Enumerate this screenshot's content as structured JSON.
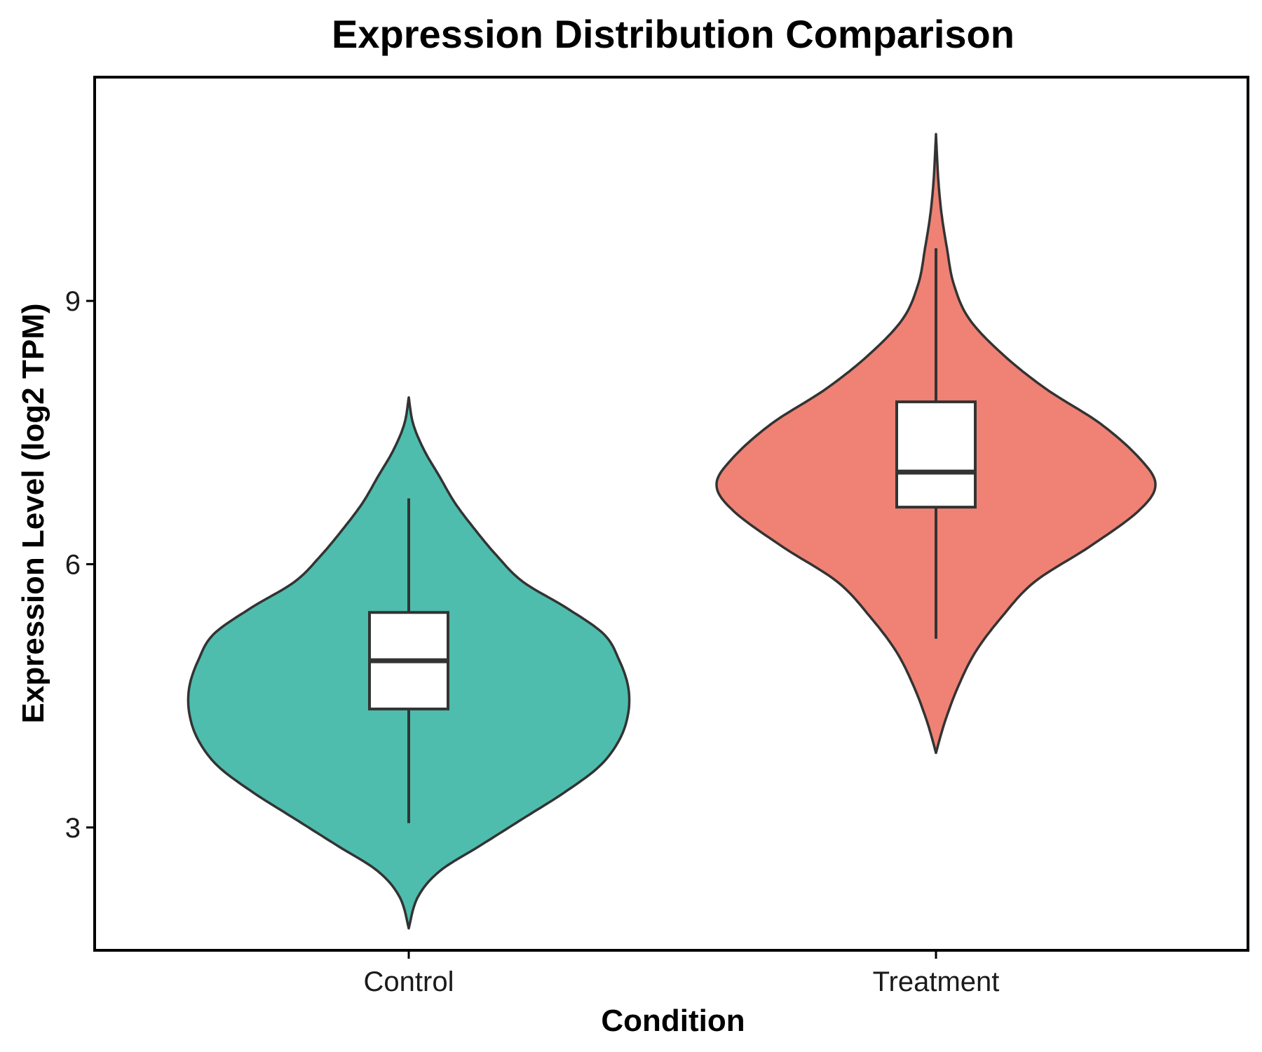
{
  "chart_data": {
    "type": "violin",
    "title": "Expression Distribution Comparison",
    "xlabel": "Condition",
    "ylabel": "Expression Level (log2 TPM)",
    "categories": [
      "Control",
      "Treatment"
    ],
    "ylim": [
      1.6,
      11.55
    ],
    "yticks": [
      3,
      6,
      9
    ],
    "grid": false,
    "legend": "none",
    "colors": {
      "Control": "#4EBDAD",
      "Treatment": "#EF8274",
      "outline": "#333333"
    },
    "series": [
      {
        "category": "Control",
        "box": {
          "whisker_low": 3.05,
          "q1": 4.35,
          "median": 4.9,
          "q3": 5.45,
          "whisker_high": 6.75
        },
        "range": [
          1.85,
          7.9
        ],
        "density": [
          [
            1.85,
            0.0
          ],
          [
            2.2,
            0.04
          ],
          [
            2.5,
            0.14
          ],
          [
            2.8,
            0.33
          ],
          [
            3.1,
            0.52
          ],
          [
            3.4,
            0.71
          ],
          [
            3.7,
            0.87
          ],
          [
            4.0,
            0.96
          ],
          [
            4.3,
            1.0
          ],
          [
            4.6,
            1.0
          ],
          [
            4.9,
            0.96
          ],
          [
            5.2,
            0.89
          ],
          [
            5.5,
            0.72
          ],
          [
            5.8,
            0.52
          ],
          [
            6.1,
            0.4
          ],
          [
            6.4,
            0.3
          ],
          [
            6.7,
            0.21
          ],
          [
            7.0,
            0.14
          ],
          [
            7.3,
            0.07
          ],
          [
            7.6,
            0.02
          ],
          [
            7.9,
            0.0
          ]
        ]
      },
      {
        "category": "Treatment",
        "box": {
          "whisker_low": 5.15,
          "q1": 6.65,
          "median": 7.05,
          "q3": 7.85,
          "whisker_high": 9.6
        },
        "range": [
          3.85,
          10.9
        ],
        "density": [
          [
            3.85,
            0.0
          ],
          [
            4.2,
            0.04
          ],
          [
            4.6,
            0.1
          ],
          [
            5.0,
            0.18
          ],
          [
            5.4,
            0.3
          ],
          [
            5.8,
            0.45
          ],
          [
            6.2,
            0.7
          ],
          [
            6.6,
            0.92
          ],
          [
            6.9,
            1.0
          ],
          [
            7.2,
            0.93
          ],
          [
            7.6,
            0.75
          ],
          [
            8.0,
            0.5
          ],
          [
            8.4,
            0.3
          ],
          [
            8.8,
            0.15
          ],
          [
            9.2,
            0.08
          ],
          [
            9.6,
            0.05
          ],
          [
            10.0,
            0.025
          ],
          [
            10.4,
            0.01
          ],
          [
            10.9,
            0.0
          ]
        ]
      }
    ]
  }
}
